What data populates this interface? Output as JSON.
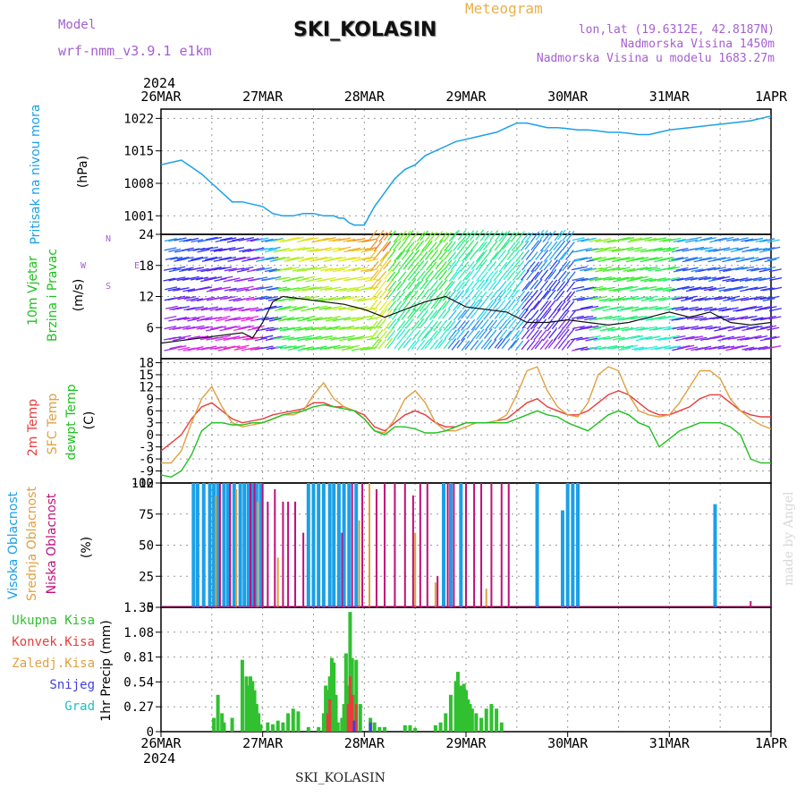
{
  "header": {
    "model_label": "Model",
    "model_name": "wrf-nmm_v3.9.1 e1km",
    "title": "SKI_KOLASIN",
    "meteogram": "Meteogram",
    "lonlat": "lon,lat (19.6312E, 42.8187N)",
    "altitude": "Nadmorska Visina 1450m",
    "model_altitude": "Nadmorska Visina u modelu 1683.27m"
  },
  "footer": {
    "station": "SKI_KOLASIN",
    "made_by": "made by Angel"
  },
  "time_axis": {
    "year": "2024",
    "labels": [
      "26MAR",
      "27MAR",
      "28MAR",
      "29MAR",
      "30MAR",
      "31MAR",
      "1APR"
    ]
  },
  "colors": {
    "pressure": "#1aa0e8",
    "temp2m": "#e83c3c",
    "sfc": "#e0a040",
    "dewpt": "#20c020",
    "wind_line": "#111111",
    "high_cloud": "#1aa0e8",
    "mid_cloud": "#e0a040",
    "low_cloud": "#c0107a",
    "precip_total": "#30c030",
    "precip_conv": "#e83c3c",
    "snow": "#4040e0",
    "hail": "#20c0c0"
  },
  "chart_data": [
    {
      "type": "line",
      "panel": "pressure",
      "ylabel": [
        "Pritisak na nivou mora",
        "(hPa)"
      ],
      "yticks": [
        1001,
        1008,
        1015,
        1022
      ],
      "ylim": [
        997,
        1024
      ],
      "x": [
        0,
        0.1,
        0.2,
        0.3,
        0.4,
        0.5,
        0.55,
        0.6,
        0.7,
        0.8,
        0.9,
        1.0,
        1.1,
        1.2,
        1.3,
        1.4,
        1.5,
        1.6,
        1.7,
        1.75,
        1.8,
        1.85,
        1.9,
        1.95,
        2.0,
        2.05,
        2.1,
        2.2,
        2.3,
        2.4,
        2.5,
        2.6,
        2.7,
        2.8,
        2.9,
        3.0,
        3.1,
        3.2,
        3.3,
        3.4,
        3.5,
        3.6,
        3.7,
        3.8,
        3.9,
        4.0,
        4.1,
        4.2,
        4.3,
        4.4,
        4.5,
        4.6,
        4.7,
        4.8,
        4.9,
        5.0,
        5.2,
        5.4,
        5.6,
        5.8,
        6.0
      ],
      "values": [
        1012,
        1012.5,
        1013,
        1011.5,
        1010,
        1008,
        1007,
        1006,
        1004,
        1004,
        1003.5,
        1003,
        1001.5,
        1001,
        1001,
        1001.5,
        1001.5,
        1001,
        1001,
        1000.5,
        1000.5,
        999.5,
        999,
        999,
        999,
        1001,
        1003,
        1006,
        1009,
        1011,
        1012,
        1014,
        1015,
        1016,
        1017,
        1017.5,
        1018,
        1018.5,
        1019,
        1020,
        1021,
        1021,
        1020.5,
        1020,
        1020,
        1019.8,
        1019.5,
        1019.5,
        1019.3,
        1019,
        1019,
        1018.8,
        1018.5,
        1018.5,
        1019,
        1019.5,
        1020,
        1020.5,
        1021,
        1021.5,
        1022.5
      ],
      "color": "#1aa0e8"
    },
    {
      "type": "line",
      "panel": "wind",
      "ylabel": [
        "10m Vjetar",
        "Brzina i Pravac",
        "(m/s)"
      ],
      "compass": [
        "N",
        "W",
        "E",
        "S"
      ],
      "yticks": [
        6,
        12,
        18,
        24
      ],
      "ylim": [
        0,
        24
      ],
      "x": [
        0,
        0.2,
        0.4,
        0.6,
        0.8,
        0.9,
        1.0,
        1.1,
        1.2,
        1.4,
        1.6,
        1.8,
        2.0,
        2.2,
        2.4,
        2.6,
        2.8,
        3.0,
        3.2,
        3.4,
        3.6,
        3.8,
        4.0,
        4.2,
        4.4,
        4.6,
        4.8,
        5.0,
        5.2,
        5.4,
        5.6,
        5.8,
        6.0
      ],
      "values": [
        3,
        3.5,
        4,
        4.5,
        5,
        4,
        7,
        11,
        12,
        11.5,
        11,
        10.5,
        9.5,
        8,
        9.5,
        11,
        12,
        10,
        9.5,
        9,
        7,
        7,
        7.5,
        7,
        6.5,
        7,
        8,
        9,
        8,
        9,
        7,
        6.5,
        7
      ],
      "color": "#111111"
    },
    {
      "type": "line",
      "panel": "temperature",
      "ylabel": [
        "2m Temp",
        "SFC Temp",
        "dewpt Temp",
        "(C)"
      ],
      "yticks": [
        -12,
        -9,
        -6,
        -3,
        0,
        3,
        6,
        9,
        12,
        15,
        18
      ],
      "ylim": [
        -12,
        19
      ],
      "x": [
        0,
        0.1,
        0.2,
        0.3,
        0.4,
        0.5,
        0.6,
        0.7,
        0.8,
        0.9,
        1.0,
        1.1,
        1.2,
        1.3,
        1.4,
        1.5,
        1.6,
        1.7,
        1.8,
        1.9,
        2.0,
        2.1,
        2.2,
        2.3,
        2.4,
        2.5,
        2.6,
        2.7,
        2.8,
        2.9,
        3.0,
        3.1,
        3.2,
        3.3,
        3.4,
        3.5,
        3.6,
        3.7,
        3.8,
        3.9,
        4.0,
        4.1,
        4.2,
        4.3,
        4.4,
        4.5,
        4.6,
        4.7,
        4.8,
        4.9,
        5.0,
        5.1,
        5.2,
        5.3,
        5.4,
        5.5,
        5.6,
        5.7,
        5.8,
        5.9,
        6.0
      ],
      "series": [
        {
          "name": "2m Temp",
          "color": "#e83c3c",
          "values": [
            -4,
            -2,
            0,
            4,
            7,
            8,
            6,
            4,
            3,
            3.5,
            4,
            5,
            5.5,
            6,
            6.5,
            8,
            8,
            7,
            7,
            6,
            5,
            2,
            1,
            3,
            5,
            6,
            5,
            3,
            2,
            2,
            3,
            3,
            3,
            3.5,
            4,
            6,
            8,
            9,
            7,
            6,
            5,
            5,
            6,
            8,
            10,
            11,
            10,
            8,
            6,
            5,
            5,
            6,
            7,
            9,
            10,
            10,
            8,
            6,
            5,
            4.5,
            4.5
          ]
        },
        {
          "name": "SFC Temp",
          "color": "#e0a040",
          "values": [
            -7,
            -7,
            -4,
            3,
            9,
            12,
            7,
            3,
            2,
            2.5,
            3,
            4,
            5,
            5,
            6,
            10,
            13,
            9,
            7,
            6,
            4,
            1,
            0.5,
            4,
            9,
            11,
            8,
            3,
            1,
            1,
            2,
            3,
            3,
            3.5,
            5,
            10,
            16,
            17,
            11,
            7,
            5,
            4.5,
            8,
            15,
            17,
            16,
            10,
            6,
            5,
            4.5,
            5,
            8,
            12,
            16,
            16,
            14,
            9,
            6,
            4,
            2.5,
            1.5
          ]
        },
        {
          "name": "dewpt Temp",
          "color": "#20c020",
          "values": [
            -10,
            -10.5,
            -9,
            -5,
            1,
            3,
            3,
            2.5,
            2.5,
            3,
            3,
            4,
            5,
            5.5,
            6,
            7,
            7.5,
            7,
            6.5,
            6,
            4,
            1,
            0,
            2,
            2,
            1.5,
            0.5,
            0.5,
            1,
            2,
            3,
            3,
            3,
            3,
            3,
            4,
            5,
            6,
            5,
            4.5,
            3,
            2,
            1,
            3,
            5,
            6,
            5,
            3,
            2,
            -3,
            -1,
            1,
            2,
            3,
            3,
            3,
            2,
            0,
            -6,
            -7,
            -7
          ]
        }
      ]
    },
    {
      "type": "bar",
      "panel": "cloud",
      "ylabel": [
        "Visoka Oblacnost",
        "Srednja Oblacnost",
        "Niska Oblacnost",
        "(%)"
      ],
      "yticks": [
        0,
        25,
        50,
        75,
        100
      ],
      "ylim": [
        0,
        100
      ],
      "series": [
        {
          "name": "Visoka Oblacnost",
          "color": "#1aa0e8",
          "x": [
            0.32,
            0.36,
            0.42,
            0.48,
            0.52,
            0.56,
            0.62,
            0.66,
            0.72,
            0.78,
            0.82,
            0.86,
            0.9,
            0.94,
            0.98,
            1.45,
            1.5,
            1.55,
            1.6,
            1.66,
            1.7,
            1.75,
            1.8,
            1.85,
            1.92,
            2.78,
            2.85,
            2.95,
            3.7,
            3.95,
            4.0,
            4.05,
            4.1,
            5.45
          ],
          "values": [
            100,
            100,
            100,
            100,
            100,
            100,
            100,
            100,
            100,
            100,
            100,
            100,
            100,
            100,
            100,
            100,
            100,
            100,
            100,
            100,
            100,
            100,
            100,
            100,
            100,
            100,
            100,
            100,
            100,
            78,
            100,
            100,
            100,
            83
          ]
        },
        {
          "name": "Srednja Oblacnost",
          "color": "#e0a040",
          "x": [
            0.54,
            0.74,
            0.95,
            1.15,
            1.95,
            2.05,
            2.3,
            2.5,
            2.7,
            3.2
          ],
          "values": [
            90,
            95,
            85,
            40,
            70,
            100,
            100,
            60,
            20,
            15
          ]
        },
        {
          "name": "Niska Oblacnost",
          "color": "#c0107a",
          "x": [
            0.58,
            0.68,
            0.88,
            0.92,
            1.0,
            1.05,
            1.12,
            1.2,
            1.25,
            1.32,
            1.4,
            1.78,
            1.88,
            1.98,
            2.12,
            2.2,
            2.3,
            2.4,
            2.48,
            2.55,
            2.62,
            2.72,
            2.82,
            2.88,
            3.0,
            3.08,
            3.15,
            3.25,
            3.35,
            3.42,
            5.8
          ],
          "values": [
            100,
            100,
            100,
            100,
            100,
            85,
            95,
            85,
            85,
            85,
            60,
            60,
            100,
            100,
            95,
            100,
            100,
            100,
            90,
            100,
            100,
            25,
            100,
            100,
            100,
            100,
            100,
            100,
            100,
            100,
            5
          ]
        }
      ]
    },
    {
      "type": "bar",
      "panel": "precip",
      "ylabel": [
        "1hr Precip (mm)"
      ],
      "legend": [
        "Ukupna Kisa",
        "Konvek.Kisa",
        "Zaledj.Kisa",
        "Snijeg",
        "Grad"
      ],
      "yticks": [
        0,
        0.27,
        0.54,
        0.81,
        1.08,
        1.35
      ],
      "ylim": [
        0,
        1.35
      ],
      "series": [
        {
          "name": "Ukupna Kisa",
          "color": "#30c030",
          "x": [
            0.52,
            0.56,
            0.6,
            0.62,
            0.7,
            0.8,
            0.84,
            0.86,
            0.88,
            0.9,
            0.92,
            0.94,
            0.96,
            0.98,
            1.05,
            1.1,
            1.15,
            1.2,
            1.25,
            1.3,
            1.35,
            1.45,
            1.55,
            1.6,
            1.62,
            1.64,
            1.66,
            1.68,
            1.7,
            1.72,
            1.74,
            1.78,
            1.8,
            1.82,
            1.84,
            1.86,
            1.88,
            1.9,
            1.92,
            1.96,
            2.06,
            2.1,
            2.15,
            2.2,
            2.4,
            2.45,
            2.5,
            2.7,
            2.75,
            2.8,
            2.85,
            2.9,
            2.92,
            2.94,
            2.96,
            2.98,
            3.0,
            3.02,
            3.04,
            3.06,
            3.1,
            3.15,
            3.2,
            3.25,
            3.3,
            3.35
          ],
          "values": [
            0.15,
            0.4,
            0.2,
            0.1,
            0.15,
            0.78,
            0.6,
            0.5,
            0.6,
            0.55,
            0.45,
            0.3,
            0.2,
            0.08,
            0.1,
            0.08,
            0.12,
            0.1,
            0.2,
            0.25,
            0.22,
            0.05,
            0.05,
            0.2,
            0.5,
            0.45,
            0.6,
            0.8,
            0.75,
            0.4,
            0.1,
            0.15,
            0.3,
            0.85,
            0.5,
            1.3,
            0.8,
            0.4,
            0.78,
            0.3,
            0.15,
            0.1,
            0.05,
            0.05,
            0.07,
            0.07,
            0.04,
            0.07,
            0.1,
            0.2,
            0.4,
            0.55,
            0.65,
            0.5,
            0.5,
            0.52,
            0.45,
            0.35,
            0.3,
            0.25,
            0.2,
            0.15,
            0.25,
            0.3,
            0.25,
            0.1
          ]
        },
        {
          "name": "Konvek.Kisa",
          "color": "#e83c3c",
          "x": [
            1.64,
            1.66,
            1.84,
            1.86,
            1.88,
            1.92
          ],
          "values": [
            0.2,
            0.35,
            0.3,
            0.6,
            0.4,
            0.3
          ]
        },
        {
          "name": "Snijeg",
          "color": "#4040e0",
          "x": [
            1.9,
            2.06
          ],
          "values": [
            0.12,
            0.1
          ]
        }
      ]
    }
  ]
}
